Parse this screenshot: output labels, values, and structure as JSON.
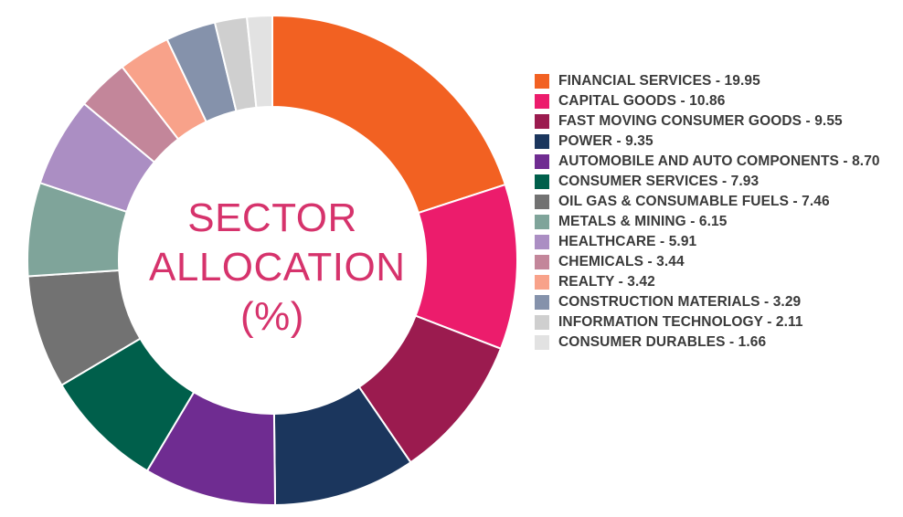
{
  "chart_data": {
    "type": "pie",
    "variant": "donut",
    "title_lines": [
      "SECTOR",
      "ALLOCATION",
      "(%)"
    ],
    "legend_position": "right",
    "slices": [
      {
        "name": "FINANCIAL SERVICES",
        "value": 19.95,
        "value_label": "19.95",
        "color": "#f26122"
      },
      {
        "name": "CAPITAL GOODS",
        "value": 10.86,
        "value_label": "10.86",
        "color": "#ec1c6c"
      },
      {
        "name": "FAST MOVING CONSUMER GOODS",
        "value": 9.55,
        "value_label": "9.55",
        "color": "#9b1b4f"
      },
      {
        "name": "POWER",
        "value": 9.35,
        "value_label": "9.35",
        "color": "#1b365d"
      },
      {
        "name": "AUTOMOBILE AND AUTO COMPONENTS",
        "value": 8.7,
        "value_label": "8.70",
        "color": "#6f2c91"
      },
      {
        "name": "CONSUMER SERVICES",
        "value": 7.93,
        "value_label": "7.93",
        "color": "#005f4b"
      },
      {
        "name": "OIL GAS & CONSUMABLE FUELS",
        "value": 7.46,
        "value_label": "7.46",
        "color": "#727272"
      },
      {
        "name": "METALS & MINING",
        "value": 6.15,
        "value_label": "6.15",
        "color": "#7fa49a"
      },
      {
        "name": "HEALTHCARE",
        "value": 5.91,
        "value_label": "5.91",
        "color": "#ab8ec3"
      },
      {
        "name": "CHEMICALS",
        "value": 3.44,
        "value_label": "3.44",
        "color": "#c3869a"
      },
      {
        "name": "REALTY",
        "value": 3.42,
        "value_label": "3.42",
        "color": "#f8a28a"
      },
      {
        "name": "CONSTRUCTION MATERIALS",
        "value": 3.29,
        "value_label": "3.29",
        "color": "#8592ab"
      },
      {
        "name": "INFORMATION TECHNOLOGY",
        "value": 2.11,
        "value_label": "2.11",
        "color": "#cfcfcf"
      },
      {
        "name": "CONSUMER DURABLES",
        "value": 1.66,
        "value_label": "1.66",
        "color": "#e2e2e2"
      }
    ]
  }
}
